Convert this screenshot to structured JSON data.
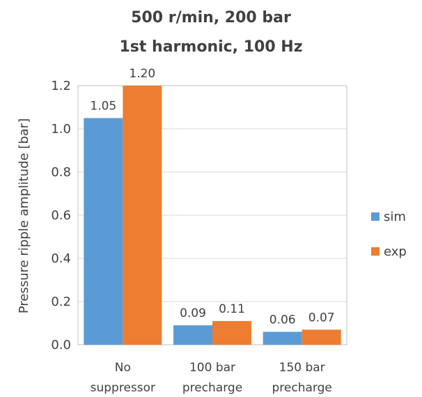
{
  "chart_data": {
    "type": "bar",
    "title": "500 r/min, 200 bar",
    "subtitle": "1st harmonic, 100 Hz",
    "ylabel": "Pressure ripple amplitude [bar]",
    "xlabel": "",
    "ylim": [
      0,
      1.2
    ],
    "yticks": [
      "0.0",
      "0.2",
      "0.4",
      "0.6",
      "0.8",
      "1.0",
      "1.2"
    ],
    "categories": [
      [
        "No",
        "suppressor"
      ],
      [
        "100 bar",
        "precharge"
      ],
      [
        "150 bar",
        "precharge"
      ]
    ],
    "series": [
      {
        "name": "sim",
        "color": "#5b9bd5",
        "values": [
          1.05,
          0.09,
          0.06
        ],
        "labels": [
          "1.05",
          "0.09",
          "0.06"
        ]
      },
      {
        "name": "exp",
        "color": "#ed7d31",
        "values": [
          1.2,
          0.11,
          0.07
        ],
        "labels": [
          "1.20",
          "0.11",
          "0.07"
        ]
      }
    ],
    "grid": true,
    "legend": "right"
  }
}
